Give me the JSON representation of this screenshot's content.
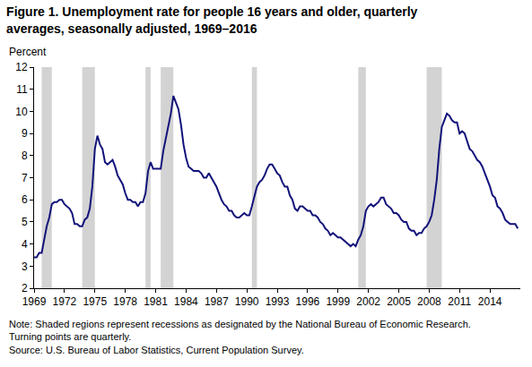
{
  "chart_data": {
    "type": "line",
    "title": [
      "Figure 1. Unemployment rate for people 16 years and older, quarterly",
      "averages, seasonally adjusted, 1969–2016"
    ],
    "ylabel": "Percent",
    "notes": [
      "Note: Shaded regions represent recessions as designated by the National Bureau of Economic Research.",
      "Turning points are quarterly.",
      "Source: U.S. Bureau of Labor Statistics, Current Population Survey."
    ],
    "color": "#12127a",
    "x": [
      1969,
      1969.25,
      1969.5,
      1969.75,
      1970,
      1970.25,
      1970.5,
      1970.75,
      1971,
      1971.25,
      1971.5,
      1971.75,
      1972,
      1972.25,
      1972.5,
      1972.75,
      1973,
      1973.25,
      1973.5,
      1973.75,
      1974,
      1974.25,
      1974.5,
      1974.75,
      1975,
      1975.25,
      1975.5,
      1975.75,
      1976,
      1976.25,
      1976.5,
      1976.75,
      1977,
      1977.25,
      1977.5,
      1977.75,
      1978,
      1978.25,
      1978.5,
      1978.75,
      1979,
      1979.25,
      1979.5,
      1979.75,
      1980,
      1980.25,
      1980.5,
      1980.75,
      1981,
      1981.25,
      1981.5,
      1981.75,
      1982,
      1982.25,
      1982.5,
      1982.75,
      1983,
      1983.25,
      1983.5,
      1983.75,
      1984,
      1984.25,
      1984.5,
      1984.75,
      1985,
      1985.25,
      1985.5,
      1985.75,
      1986,
      1986.25,
      1986.5,
      1986.75,
      1987,
      1987.25,
      1987.5,
      1987.75,
      1988,
      1988.25,
      1988.5,
      1988.75,
      1989,
      1989.25,
      1989.5,
      1989.75,
      1990,
      1990.25,
      1990.5,
      1990.75,
      1991,
      1991.25,
      1991.5,
      1991.75,
      1992,
      1992.25,
      1992.5,
      1992.75,
      1993,
      1993.25,
      1993.5,
      1993.75,
      1994,
      1994.25,
      1994.5,
      1994.75,
      1995,
      1995.25,
      1995.5,
      1995.75,
      1996,
      1996.25,
      1996.5,
      1996.75,
      1997,
      1997.25,
      1997.5,
      1997.75,
      1998,
      1998.25,
      1998.5,
      1998.75,
      1999,
      1999.25,
      1999.5,
      1999.75,
      2000,
      2000.25,
      2000.5,
      2000.75,
      2001,
      2001.25,
      2001.5,
      2001.75,
      2002,
      2002.25,
      2002.5,
      2002.75,
      2003,
      2003.25,
      2003.5,
      2003.75,
      2004,
      2004.25,
      2004.5,
      2004.75,
      2005,
      2005.25,
      2005.5,
      2005.75,
      2006,
      2006.25,
      2006.5,
      2006.75,
      2007,
      2007.25,
      2007.5,
      2007.75,
      2008,
      2008.25,
      2008.5,
      2008.75,
      2009,
      2009.25,
      2009.5,
      2009.75,
      2010,
      2010.25,
      2010.5,
      2010.75,
      2011,
      2011.25,
      2011.5,
      2011.75,
      2012,
      2012.25,
      2012.5,
      2012.75,
      2013,
      2013.25,
      2013.5,
      2013.75,
      2014,
      2014.25,
      2014.5,
      2014.75,
      2015,
      2015.25,
      2015.5,
      2015.75,
      2016,
      2016.25,
      2016.5,
      2016.75
    ],
    "values": [
      3.4,
      3.4,
      3.6,
      3.6,
      4.2,
      4.8,
      5.2,
      5.8,
      5.9,
      5.9,
      6.0,
      6.0,
      5.8,
      5.7,
      5.6,
      5.4,
      4.9,
      4.9,
      4.8,
      4.8,
      5.1,
      5.2,
      5.6,
      6.6,
      8.3,
      8.9,
      8.5,
      8.3,
      7.7,
      7.6,
      7.7,
      7.8,
      7.5,
      7.1,
      6.9,
      6.7,
      6.3,
      6.0,
      6.0,
      5.9,
      5.9,
      5.7,
      5.9,
      5.9,
      6.3,
      7.3,
      7.7,
      7.4,
      7.4,
      7.4,
      7.4,
      8.2,
      8.8,
      9.4,
      9.9,
      10.7,
      10.4,
      10.1,
      9.4,
      8.5,
      7.9,
      7.5,
      7.4,
      7.3,
      7.3,
      7.3,
      7.2,
      7.0,
      7.0,
      7.2,
      7.0,
      6.8,
      6.6,
      6.3,
      6.0,
      5.8,
      5.7,
      5.5,
      5.5,
      5.3,
      5.2,
      5.2,
      5.3,
      5.4,
      5.3,
      5.3,
      5.7,
      6.1,
      6.6,
      6.8,
      6.9,
      7.1,
      7.4,
      7.6,
      7.6,
      7.4,
      7.2,
      7.1,
      6.8,
      6.6,
      6.6,
      6.2,
      6.0,
      5.6,
      5.5,
      5.7,
      5.7,
      5.6,
      5.5,
      5.5,
      5.3,
      5.3,
      5.2,
      5.0,
      4.9,
      4.7,
      4.6,
      4.4,
      4.5,
      4.4,
      4.3,
      4.3,
      4.2,
      4.1,
      4.0,
      3.9,
      4.0,
      3.9,
      4.2,
      4.4,
      4.8,
      5.5,
      5.7,
      5.8,
      5.7,
      5.8,
      5.9,
      6.1,
      6.1,
      5.8,
      5.7,
      5.6,
      5.4,
      5.4,
      5.3,
      5.1,
      5.0,
      5.0,
      4.7,
      4.6,
      4.6,
      4.4,
      4.5,
      4.5,
      4.7,
      4.8,
      5.0,
      5.3,
      6.0,
      6.9,
      8.3,
      9.3,
      9.6,
      9.9,
      9.8,
      9.6,
      9.5,
      9.5,
      9.0,
      9.1,
      9.0,
      8.6,
      8.3,
      8.2,
      8.0,
      7.8,
      7.7,
      7.5,
      7.2,
      6.9,
      6.6,
      6.2,
      6.1,
      5.7,
      5.6,
      5.4,
      5.1,
      5.0,
      4.9,
      4.9,
      4.9,
      4.7
    ],
    "recessions": [
      {
        "start": 1969.75,
        "end": 1970.75
      },
      {
        "start": 1973.75,
        "end": 1975.0
      },
      {
        "start": 1980.0,
        "end": 1980.5
      },
      {
        "start": 1981.5,
        "end": 1982.75
      },
      {
        "start": 1990.5,
        "end": 1991.0
      },
      {
        "start": 2001.0,
        "end": 2001.75
      },
      {
        "start": 2007.75,
        "end": 2009.25
      }
    ],
    "recession_color": "#d3d3d3",
    "xlim": [
      1969,
      2017
    ],
    "xticks": [
      1969,
      1972,
      1975,
      1978,
      1981,
      1984,
      1987,
      1990,
      1993,
      1996,
      1999,
      2002,
      2005,
      2008,
      2011,
      2014
    ],
    "ylim": [
      2,
      12
    ],
    "yticks": [
      2,
      3,
      4,
      5,
      6,
      7,
      8,
      9,
      10,
      11,
      12
    ],
    "grid": false
  }
}
